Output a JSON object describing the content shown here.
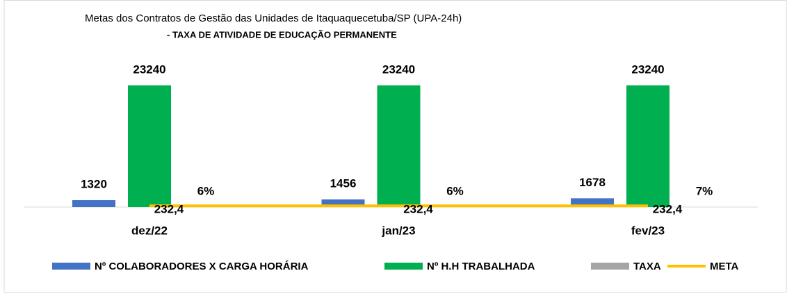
{
  "chart_data": {
    "type": "bar",
    "title": "Metas dos Contratos de Gestão das Unidades de Itaquaquecetuba/SP (UPA-24h)",
    "subtitle": "- TAXA DE ATIVIDADE DE EDUCAÇÃO PERMANENTE",
    "categories": [
      "dez/22",
      "jan/23",
      "fev/23"
    ],
    "series": [
      {
        "name": "Nº COLABORADORES X CARGA HORÁRIA",
        "color": "#4472c4",
        "type": "bar",
        "values": [
          1320,
          1456,
          1678
        ]
      },
      {
        "name": "Nº H.H TRABALHADA",
        "color": "#00b050",
        "type": "bar",
        "values": [
          23240,
          23240,
          23240
        ]
      },
      {
        "name": "TAXA",
        "color": "#a5a5a5",
        "type": "bar",
        "values": [
          0.06,
          0.06,
          0.07
        ],
        "value_labels": [
          "6%",
          "6%",
          "7%"
        ]
      },
      {
        "name": "META",
        "color": "#ffc000",
        "type": "line",
        "values": [
          232.4,
          232.4,
          232.4
        ],
        "value_labels": [
          "232,4",
          "232,4",
          "232,4"
        ]
      }
    ],
    "ylim": [
      0,
      26000
    ]
  }
}
